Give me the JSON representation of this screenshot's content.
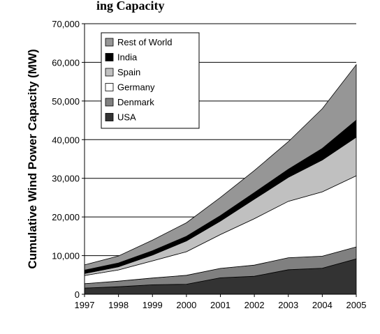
{
  "header_text": "ing Capacity",
  "chart_data": {
    "type": "area",
    "stacked": true,
    "ylabel": "Cumulative Wind Power Capacity (MW)",
    "xlabel": "",
    "x": [
      "1997",
      "1998",
      "1999",
      "2000",
      "2001",
      "2002",
      "2003",
      "2004",
      "2005"
    ],
    "ylim": [
      0,
      70000
    ],
    "yticks": [
      0,
      10000,
      20000,
      30000,
      40000,
      50000,
      60000,
      70000
    ],
    "ytick_labels": [
      "0",
      "10,000",
      "20,000",
      "30,000",
      "40,000",
      "50,000",
      "60,000",
      "70,000"
    ],
    "grid": true,
    "legend_placement": "top-left",
    "series": [
      {
        "name": "USA",
        "color": "#333333",
        "values": [
          1600,
          1950,
          2450,
          2600,
          4250,
          4650,
          6350,
          6750,
          9150
        ]
      },
      {
        "name": "Denmark",
        "color": "#808080",
        "values": [
          1150,
          1450,
          1750,
          2300,
          2450,
          2900,
          3100,
          3100,
          3100
        ]
      },
      {
        "name": "Germany",
        "color": "#ffffff",
        "values": [
          2100,
          2900,
          4450,
          6100,
          8750,
          12000,
          14600,
          16650,
          18400
        ]
      },
      {
        "name": "Spain",
        "color": "#c0c0c0",
        "values": [
          500,
          800,
          1500,
          2800,
          3500,
          5050,
          6200,
          8250,
          10000
        ]
      },
      {
        "name": "India",
        "color": "#000000",
        "values": [
          900,
          1000,
          1100,
          1200,
          1400,
          1700,
          2100,
          3000,
          4400
        ]
      },
      {
        "name": "Rest of World",
        "color": "#969696",
        "values": [
          1350,
          1800,
          2750,
          3500,
          4700,
          5700,
          7150,
          10250,
          14350
        ]
      }
    ],
    "legend_order": [
      "Rest of World",
      "India",
      "Spain",
      "Germany",
      "Denmark",
      "USA"
    ]
  }
}
